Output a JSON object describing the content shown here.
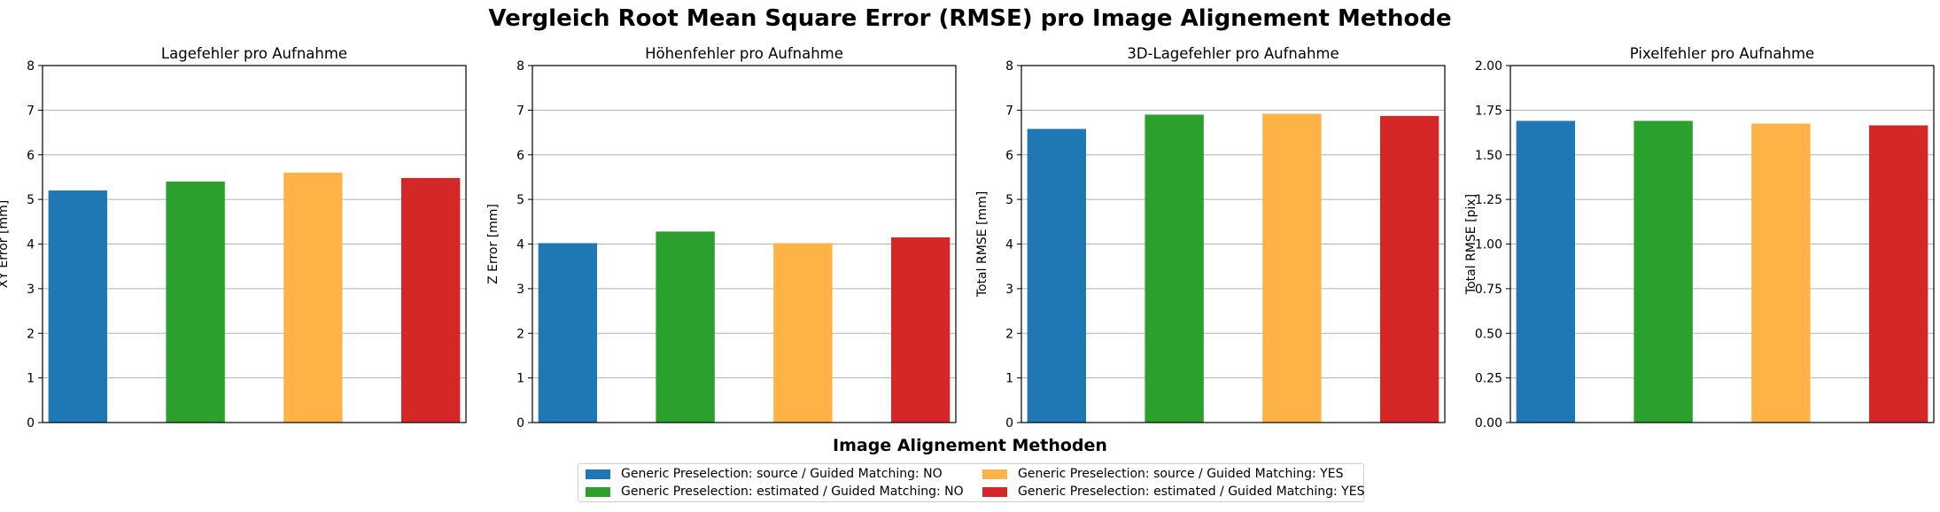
{
  "suptitle": "Vergleich Root Mean Square Error (RMSE) pro Image Alignement Methode",
  "legend": {
    "title": "Image Alignement Methoden",
    "items": [
      {
        "label": "Generic Preselection: source / Guided Matching: NO",
        "color": "#1f77b4"
      },
      {
        "label": "Generic Preselection: source / Guided Matching: YES",
        "color": "#ffb347"
      },
      {
        "label": "Generic Preselection: estimated / Guided Matching: NO",
        "color": "#2ca02c"
      },
      {
        "label": "Generic Preselection: estimated / Guided Matching: YES",
        "color": "#d62728"
      }
    ]
  },
  "chart_data": [
    {
      "type": "bar",
      "title": "Lagefehler pro Aufnahme",
      "ylabel": "XY Error [mm]",
      "ylim": [
        0,
        8
      ],
      "yticks": [
        "0",
        "1",
        "2",
        "3",
        "4",
        "5",
        "6",
        "7",
        "8"
      ],
      "grid": "y",
      "categories": [
        "Generic Preselection: source / Guided Matching: NO",
        "Generic Preselection: estimated / Guided Matching: NO",
        "Generic Preselection: source / Guided Matching: YES",
        "Generic Preselection: estimated / Guided Matching: YES"
      ],
      "colors": [
        "#1f77b4",
        "#2ca02c",
        "#ffb347",
        "#d62728"
      ],
      "values": [
        5.2,
        5.4,
        5.6,
        5.48
      ]
    },
    {
      "type": "bar",
      "title": "Höhenfehler pro Aufnahme",
      "ylabel": "Z Error [mm]",
      "ylim": [
        0,
        8
      ],
      "yticks": [
        "0",
        "1",
        "2",
        "3",
        "4",
        "5",
        "6",
        "7",
        "8"
      ],
      "grid": "y",
      "categories": [
        "Generic Preselection: source / Guided Matching: NO",
        "Generic Preselection: estimated / Guided Matching: NO",
        "Generic Preselection: source / Guided Matching: YES",
        "Generic Preselection: estimated / Guided Matching: YES"
      ],
      "colors": [
        "#1f77b4",
        "#2ca02c",
        "#ffb347",
        "#d62728"
      ],
      "values": [
        4.02,
        4.28,
        4.02,
        4.15
      ]
    },
    {
      "type": "bar",
      "title": "3D-Lagefehler pro Aufnahme",
      "ylabel": "Total RMSE [mm]",
      "ylim": [
        0,
        8
      ],
      "yticks": [
        "0",
        "1",
        "2",
        "3",
        "4",
        "5",
        "6",
        "7",
        "8"
      ],
      "grid": "y",
      "categories": [
        "Generic Preselection: source / Guided Matching: NO",
        "Generic Preselection: estimated / Guided Matching: NO",
        "Generic Preselection: source / Guided Matching: YES",
        "Generic Preselection: estimated / Guided Matching: YES"
      ],
      "colors": [
        "#1f77b4",
        "#2ca02c",
        "#ffb347",
        "#d62728"
      ],
      "values": [
        6.58,
        6.9,
        6.92,
        6.87
      ]
    },
    {
      "type": "bar",
      "title": "Pixelfehler pro Aufnahme",
      "ylabel": "Total RMSE [pix]",
      "ylim": [
        0,
        2
      ],
      "yticks": [
        "0.00",
        "0.25",
        "0.50",
        "0.75",
        "1.00",
        "1.25",
        "1.50",
        "1.75",
        "2.00"
      ],
      "grid": "y",
      "categories": [
        "Generic Preselection: source / Guided Matching: NO",
        "Generic Preselection: estimated / Guided Matching: NO",
        "Generic Preselection: source / Guided Matching: YES",
        "Generic Preselection: estimated / Guided Matching: YES"
      ],
      "colors": [
        "#1f77b4",
        "#2ca02c",
        "#ffb347",
        "#d62728"
      ],
      "values": [
        1.69,
        1.69,
        1.675,
        1.665
      ]
    }
  ]
}
